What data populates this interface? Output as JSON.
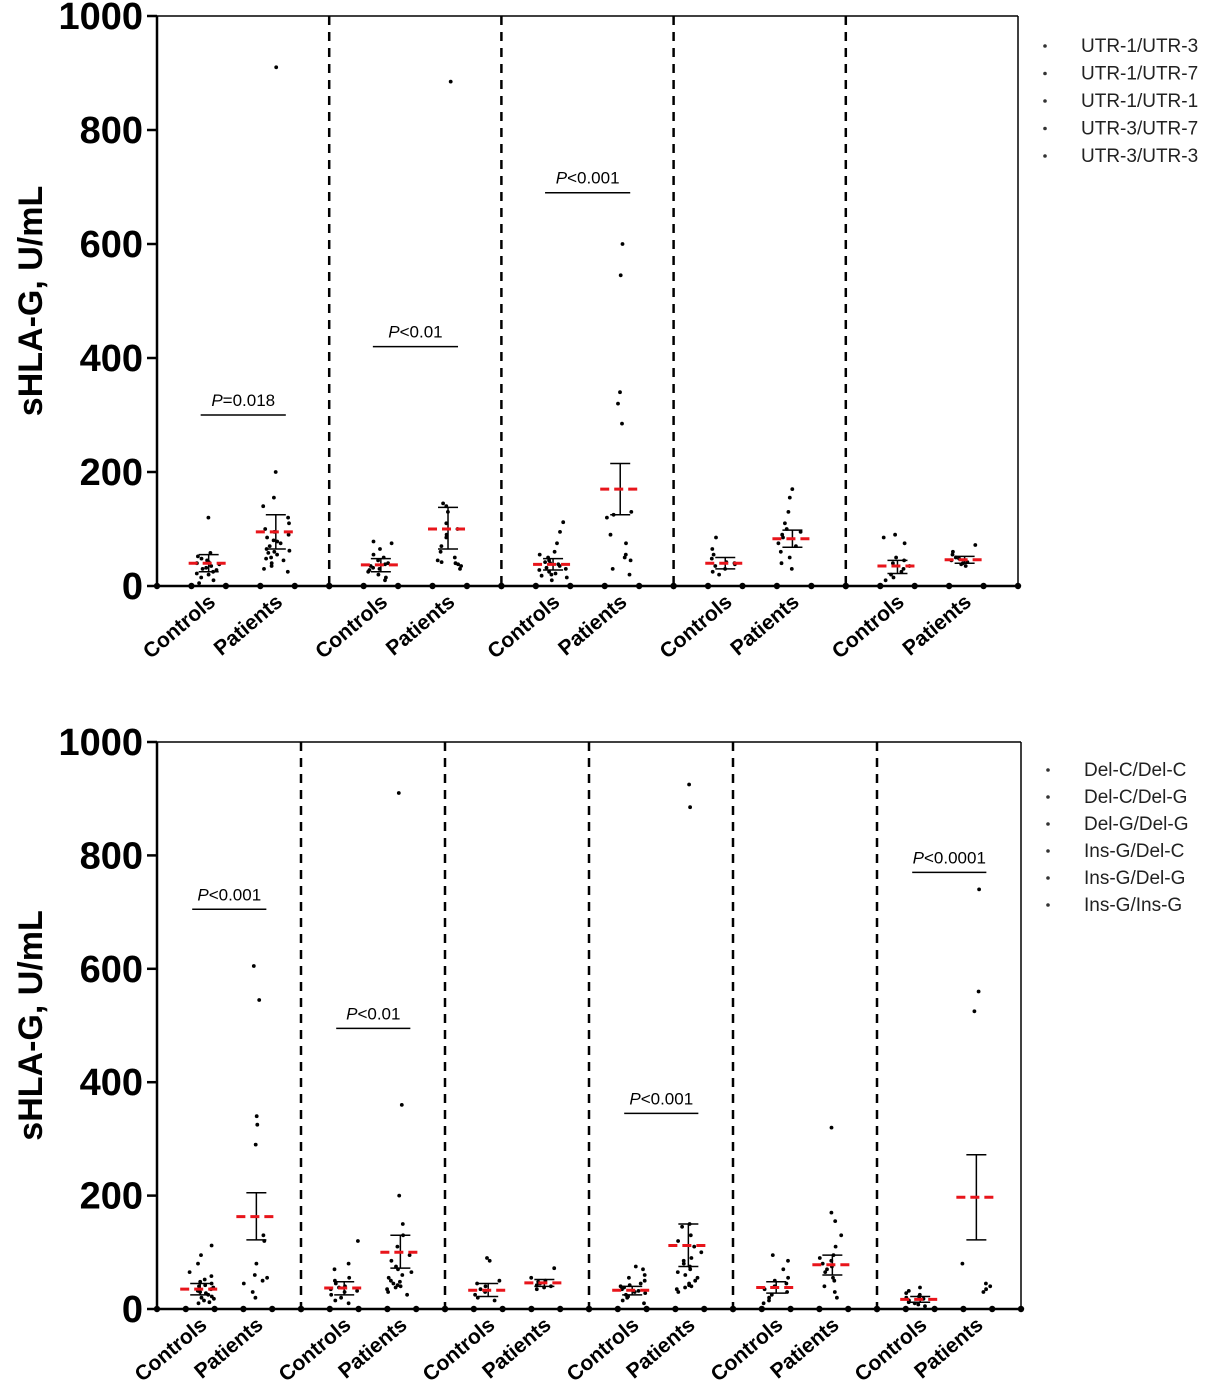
{
  "chart_data": [
    {
      "type": "scatter",
      "title": "",
      "ylabel": "sHLA-G, U/mL",
      "ylim": [
        0,
        1000
      ],
      "yticks": [
        "0",
        "200",
        "400",
        "600",
        "800",
        "1000"
      ],
      "legend_position": "top-right",
      "legend": [
        "UTR-1/UTR-3",
        "UTR-1/UTR-7",
        "UTR-1/UTR-1",
        "UTR-3/UTR-7",
        "UTR-3/UTR-3"
      ],
      "groups": [
        {
          "name": "UTR-1/UTR-3",
          "pvalue_prefix": "P",
          "pvalue_rest": "=0.018",
          "pvalue_y": 300,
          "series": [
            {
              "name": "Controls",
              "mean": 40,
              "err_low": 25,
              "err_high": 55,
              "points": [
                120,
                58,
                52,
                48,
                45,
                42,
                40,
                38,
                35,
                32,
                30,
                28,
                25,
                22,
                20,
                15,
                10,
                5
              ]
            },
            {
              "name": "Patients",
              "mean": 95,
              "err_low": 65,
              "err_high": 125,
              "points": [
                910,
                200,
                155,
                140,
                120,
                110,
                100,
                95,
                90,
                85,
                80,
                78,
                75,
                70,
                65,
                62,
                60,
                58,
                55,
                50,
                48,
                45,
                40,
                35,
                30,
                25
              ]
            }
          ]
        },
        {
          "name": "UTR-1/UTR-7",
          "pvalue_prefix": "P",
          "pvalue_rest": "<0.01",
          "pvalue_y": 420,
          "series": [
            {
              "name": "Controls",
              "mean": 37,
              "err_low": 25,
              "err_high": 48,
              "points": [
                78,
                75,
                65,
                55,
                50,
                45,
                40,
                38,
                35,
                32,
                30,
                28,
                25,
                20,
                15,
                10
              ]
            },
            {
              "name": "Patients",
              "mean": 100,
              "err_low": 65,
              "err_high": 138,
              "points": [
                885,
                145,
                140,
                130,
                110,
                100,
                90,
                85,
                70,
                60,
                50,
                45,
                42,
                40,
                38,
                35,
                30
              ]
            }
          ]
        },
        {
          "name": "UTR-1/UTR-1",
          "pvalue_prefix": "P",
          "pvalue_rest": "<0.001",
          "pvalue_y": 690,
          "series": [
            {
              "name": "Controls",
              "mean": 38,
              "err_low": 28,
              "err_high": 48,
              "points": [
                112,
                95,
                75,
                60,
                55,
                50,
                45,
                42,
                40,
                38,
                35,
                32,
                30,
                28,
                25,
                22,
                20,
                18,
                15,
                10
              ]
            },
            {
              "name": "Patients",
              "mean": 170,
              "err_low": 125,
              "err_high": 215,
              "points": [
                600,
                545,
                340,
                320,
                285,
                130,
                125,
                120,
                90,
                75,
                55,
                50,
                45,
                30,
                20
              ]
            }
          ]
        },
        {
          "name": "UTR-3/UTR-7",
          "pvalue_prefix": "",
          "pvalue_rest": "",
          "pvalue_y": null,
          "series": [
            {
              "name": "Controls",
              "mean": 40,
              "err_low": 30,
              "err_high": 50,
              "points": [
                85,
                65,
                55,
                48,
                42,
                40,
                38,
                35,
                30,
                25,
                20
              ]
            },
            {
              "name": "Patients",
              "mean": 83,
              "err_low": 68,
              "err_high": 98,
              "points": [
                170,
                155,
                130,
                110,
                100,
                95,
                90,
                85,
                75,
                70,
                60,
                50,
                40,
                30
              ]
            }
          ]
        },
        {
          "name": "UTR-3/UTR-3",
          "pvalue_prefix": "",
          "pvalue_rest": "",
          "pvalue_y": null,
          "series": [
            {
              "name": "Controls",
              "mean": 35,
              "err_low": 22,
              "err_high": 45,
              "points": [
                90,
                85,
                75,
                50,
                45,
                40,
                35,
                30,
                25,
                20,
                15,
                10
              ]
            },
            {
              "name": "Patients",
              "mean": 46,
              "err_low": 40,
              "err_high": 52,
              "points": [
                72,
                60,
                55,
                50,
                48,
                45,
                42,
                40,
                38,
                35
              ]
            }
          ]
        }
      ]
    },
    {
      "type": "scatter",
      "title": "",
      "ylabel": "sHLA-G, U/mL",
      "ylim": [
        0,
        1000
      ],
      "yticks": [
        "0",
        "200",
        "400",
        "600",
        "800",
        "1000"
      ],
      "legend_position": "top-right",
      "legend": [
        "Del-C/Del-C",
        "Del-C/Del-G",
        "Del-G/Del-G",
        "Ins-G/Del-C",
        "Ins-G/Del-G",
        "Ins-G/Ins-G"
      ],
      "groups": [
        {
          "name": "Del-C/Del-C",
          "pvalue_prefix": "P",
          "pvalue_rest": "<0.001",
          "pvalue_y": 705,
          "series": [
            {
              "name": "Controls",
              "mean": 35,
              "err_low": 25,
              "err_high": 45,
              "points": [
                112,
                95,
                80,
                65,
                58,
                52,
                48,
                45,
                42,
                40,
                38,
                35,
                32,
                30,
                28,
                25,
                22,
                20,
                18,
                15,
                12,
                10
              ]
            },
            {
              "name": "Patients",
              "mean": 163,
              "err_low": 122,
              "err_high": 205,
              "points": [
                605,
                545,
                340,
                325,
                290,
                130,
                120,
                80,
                60,
                55,
                50,
                45,
                30,
                20
              ]
            }
          ]
        },
        {
          "name": "Del-C/Del-G",
          "pvalue_prefix": "P",
          "pvalue_rest": "<0.01",
          "pvalue_y": 495,
          "series": [
            {
              "name": "Controls",
              "mean": 37,
              "err_low": 25,
              "err_high": 48,
              "points": [
                120,
                80,
                70,
                55,
                50,
                45,
                40,
                38,
                35,
                32,
                30,
                25,
                20,
                15,
                10
              ]
            },
            {
              "name": "Patients",
              "mean": 100,
              "err_low": 72,
              "err_high": 130,
              "points": [
                910,
                360,
                200,
                150,
                130,
                110,
                95,
                85,
                75,
                70,
                65,
                60,
                55,
                50,
                48,
                45,
                42,
                40,
                38,
                35,
                30,
                25
              ]
            }
          ]
        },
        {
          "name": "Del-G/Del-G",
          "pvalue_prefix": "",
          "pvalue_rest": "",
          "pvalue_y": null,
          "series": [
            {
              "name": "Controls",
              "mean": 33,
              "err_low": 22,
              "err_high": 45,
              "points": [
                90,
                85,
                50,
                45,
                40,
                35,
                30,
                25,
                20,
                15
              ]
            },
            {
              "name": "Patients",
              "mean": 46,
              "err_low": 40,
              "err_high": 52,
              "points": [
                72,
                55,
                50,
                48,
                45,
                42,
                40,
                38,
                35
              ]
            }
          ]
        },
        {
          "name": "Ins-G/Del-C",
          "pvalue_prefix": "P",
          "pvalue_rest": "<0.001",
          "pvalue_y": 345,
          "series": [
            {
              "name": "Controls",
              "mean": 33,
              "err_low": 25,
              "err_high": 40,
              "points": [
                75,
                70,
                60,
                55,
                50,
                45,
                42,
                40,
                38,
                35,
                32,
                30,
                28,
                25,
                22,
                20,
                15,
                10
              ]
            },
            {
              "name": "Patients",
              "mean": 112,
              "err_low": 75,
              "err_high": 150,
              "points": [
                925,
                885,
                150,
                145,
                130,
                120,
                110,
                100,
                90,
                85,
                80,
                75,
                70,
                65,
                60,
                55,
                50,
                45,
                42,
                40,
                38,
                35,
                30
              ]
            }
          ]
        },
        {
          "name": "Ins-G/Del-G",
          "pvalue_prefix": "",
          "pvalue_rest": "",
          "pvalue_y": null,
          "series": [
            {
              "name": "Controls",
              "mean": 38,
              "err_low": 28,
              "err_high": 48,
              "points": [
                95,
                85,
                70,
                55,
                50,
                45,
                40,
                35,
                30,
                25,
                20,
                15,
                10
              ]
            },
            {
              "name": "Patients",
              "mean": 78,
              "err_low": 60,
              "err_high": 95,
              "points": [
                320,
                170,
                155,
                130,
                110,
                95,
                90,
                85,
                80,
                75,
                70,
                65,
                55,
                50,
                40,
                30,
                20
              ]
            }
          ]
        },
        {
          "name": "Ins-G/Ins-G",
          "pvalue_prefix": "P",
          "pvalue_rest": "<0.0001",
          "pvalue_y": 770,
          "series": [
            {
              "name": "Controls",
              "mean": 17,
              "err_low": 12,
              "err_high": 22,
              "points": [
                38,
                32,
                28,
                25,
                22,
                20,
                18,
                15,
                12,
                10,
                8,
                5
              ]
            },
            {
              "name": "Patients",
              "mean": 197,
              "err_low": 122,
              "err_high": 272,
              "points": [
                740,
                560,
                525,
                80,
                45,
                40,
                35,
                30
              ]
            }
          ]
        }
      ]
    }
  ],
  "colors": {
    "mean": "#e8151b",
    "points": "#000000",
    "axis": "#000000",
    "legend_marker": "#333333"
  }
}
